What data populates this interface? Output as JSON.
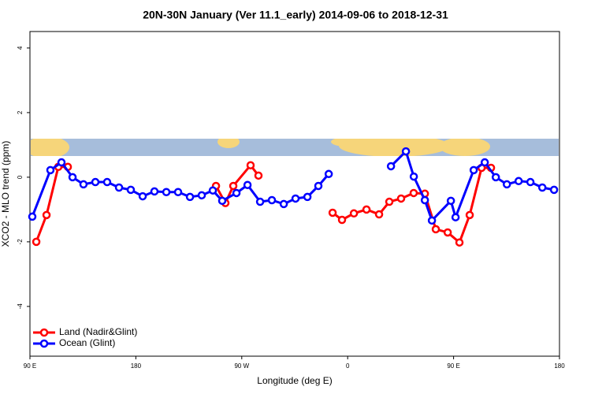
{
  "chart_data": {
    "type": "line",
    "title": "20N-30N January (Ver 11.1_early)   2014-09-06 to 2018-12-31",
    "xlabel": "Longitude (deg E)",
    "ylabel": "XCO2 - MLO trend (ppm)",
    "xlim": [
      90,
      540
    ],
    "xticks": [
      {
        "value": 90,
        "label": "90 E"
      },
      180,
      {
        "value": 270,
        "label": "90 W"
      },
      {
        "value": 360,
        "label": "0"
      },
      {
        "value": 450,
        "label": "90 E"
      },
      {
        "value": 540,
        "label": "180"
      }
    ],
    "ylim": [
      -5.54,
      4.51
    ],
    "yticks": [
      -4,
      -2,
      0,
      2,
      4
    ],
    "legend": "bottom-left",
    "series": [
      {
        "name": "Land (Nadir&Glint)",
        "color": "#ff0000",
        "x": [
          95.4,
          104.1,
          114.1,
          122.2,
          null,
          248.1,
          256.1,
          262.8,
          277.5,
          284.2,
          null,
          347.2,
          355.2,
          365.3,
          376.0,
          386.7,
          395.4,
          405.4,
          416.1,
          425.6,
          434.9,
          445.0,
          455.0,
          463.7,
          473.8,
          481.8
        ],
        "values": [
          -2.0,
          -1.17,
          0.32,
          0.32,
          null,
          -0.27,
          -0.8,
          -0.27,
          0.37,
          0.05,
          null,
          -1.1,
          -1.32,
          -1.12,
          -1.0,
          -1.15,
          -0.76,
          -0.66,
          -0.49,
          -0.51,
          -1.61,
          -1.71,
          -2.02,
          -1.17,
          0.29,
          0.29
        ]
      },
      {
        "name": "Ocean (Glint)",
        "color": "#0000ff",
        "x": [
          92.0,
          107.4,
          116.8,
          126.2,
          135.5,
          145.6,
          155.6,
          165.7,
          175.7,
          185.8,
          195.8,
          205.9,
          215.9,
          226.0,
          236.0,
          245.4,
          253.4,
          265.5,
          274.9,
          285.6,
          295.6,
          305.7,
          315.7,
          325.8,
          335.1,
          343.9,
          null,
          396.8,
          409.5,
          416.2,
          425.6,
          431.6,
          447.7,
          451.7,
          467.1,
          476.5,
          485.9,
          495.3,
          505.3,
          515.3,
          525.4,
          535.4
        ],
        "values": [
          -1.22,
          0.22,
          0.46,
          0.0,
          -0.22,
          -0.15,
          -0.15,
          -0.32,
          -0.39,
          -0.59,
          -0.44,
          -0.46,
          -0.46,
          -0.61,
          -0.56,
          -0.41,
          -0.73,
          -0.49,
          -0.24,
          -0.76,
          -0.71,
          -0.83,
          -0.66,
          -0.61,
          -0.27,
          0.1,
          null,
          0.34,
          0.8,
          0.02,
          -0.71,
          -1.34,
          -0.73,
          -1.24,
          0.22,
          0.46,
          0.0,
          -0.22,
          -0.12,
          -0.15,
          -0.32,
          -0.39
        ]
      }
    ]
  }
}
